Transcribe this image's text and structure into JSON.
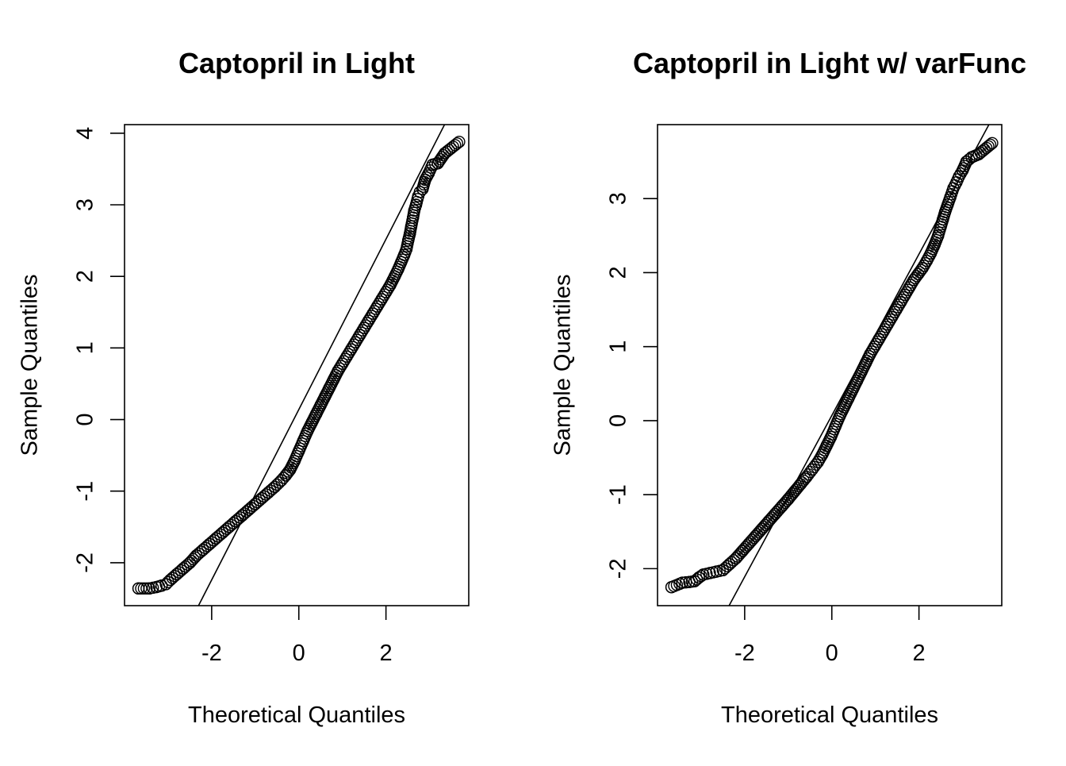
{
  "chart_data": [
    {
      "type": "scatter",
      "subtype": "normal-qq",
      "title": "Captopril in Light",
      "xlabel": "Theoretical Quantiles",
      "ylabel": "Sample Quantiles",
      "xlim": [
        -4.0,
        3.9
      ],
      "ylim": [
        -2.6,
        4.12
      ],
      "xticks": [
        -2,
        0,
        2
      ],
      "yticks": [
        -2,
        -1,
        0,
        1,
        2,
        3,
        4
      ],
      "reference_line": {
        "slope": 1.19,
        "intercept": 0.14
      },
      "points": [
        [
          3.68,
          3.88
        ],
        [
          3.35,
          3.72
        ],
        [
          3.19,
          3.58
        ],
        [
          3.07,
          3.56
        ],
        [
          2.98,
          3.44
        ],
        [
          2.9,
          3.35
        ],
        [
          2.84,
          3.22
        ],
        [
          2.78,
          3.18
        ],
        [
          2.74,
          3.12
        ],
        [
          2.69,
          3.0
        ],
        [
          2.65,
          2.92
        ],
        [
          2.62,
          2.82
        ],
        [
          2.58,
          2.7
        ],
        [
          2.55,
          2.6
        ],
        [
          2.51,
          2.5
        ],
        [
          2.47,
          2.38
        ],
        [
          2.42,
          2.3
        ],
        [
          2.35,
          2.2
        ],
        [
          2.28,
          2.1
        ],
        [
          2.2,
          2.0
        ],
        [
          2.1,
          1.88
        ],
        [
          2.0,
          1.78
        ],
        [
          1.9,
          1.68
        ],
        [
          1.8,
          1.58
        ],
        [
          1.7,
          1.48
        ],
        [
          1.6,
          1.38
        ],
        [
          1.5,
          1.28
        ],
        [
          1.4,
          1.18
        ],
        [
          1.3,
          1.08
        ],
        [
          1.2,
          0.98
        ],
        [
          1.1,
          0.88
        ],
        [
          1.0,
          0.78
        ],
        [
          0.9,
          0.68
        ],
        [
          0.8,
          0.56
        ],
        [
          0.7,
          0.44
        ],
        [
          0.6,
          0.32
        ],
        [
          0.5,
          0.2
        ],
        [
          0.4,
          0.08
        ],
        [
          0.3,
          -0.04
        ],
        [
          0.2,
          -0.16
        ],
        [
          0.1,
          -0.3
        ],
        [
          0.0,
          -0.44
        ],
        [
          -0.1,
          -0.58
        ],
        [
          -0.2,
          -0.7
        ],
        [
          -0.3,
          -0.78
        ],
        [
          -0.4,
          -0.85
        ],
        [
          -0.55,
          -0.94
        ],
        [
          -0.7,
          -1.02
        ],
        [
          -0.85,
          -1.1
        ],
        [
          -1.0,
          -1.18
        ],
        [
          -1.15,
          -1.26
        ],
        [
          -1.3,
          -1.34
        ],
        [
          -1.45,
          -1.42
        ],
        [
          -1.6,
          -1.5
        ],
        [
          -1.75,
          -1.58
        ],
        [
          -1.9,
          -1.66
        ],
        [
          -2.05,
          -1.74
        ],
        [
          -2.2,
          -1.82
        ],
        [
          -2.35,
          -1.9
        ],
        [
          -2.5,
          -2.0
        ],
        [
          -2.65,
          -2.08
        ],
        [
          -2.8,
          -2.16
        ],
        [
          -2.95,
          -2.24
        ],
        [
          -3.05,
          -2.3
        ],
        [
          -3.15,
          -2.32
        ],
        [
          -3.27,
          -2.34
        ],
        [
          -3.43,
          -2.36
        ],
        [
          -3.68,
          -2.36
        ]
      ]
    },
    {
      "type": "scatter",
      "subtype": "normal-qq",
      "title": "Captopril in Light w/ varFunc",
      "xlabel": "Theoretical Quantiles",
      "ylabel": "Sample Quantiles",
      "xlim": [
        -4.0,
        3.9
      ],
      "ylim": [
        -2.5,
        4.0
      ],
      "xticks": [
        -2,
        0,
        2
      ],
      "yticks": [
        -2,
        -1,
        0,
        1,
        2,
        3
      ],
      "reference_line": {
        "slope": 1.09,
        "intercept": 0.07
      },
      "points": [
        [
          3.68,
          3.75
        ],
        [
          3.37,
          3.6
        ],
        [
          3.21,
          3.56
        ],
        [
          3.09,
          3.5
        ],
        [
          3.0,
          3.38
        ],
        [
          2.92,
          3.3
        ],
        [
          2.86,
          3.22
        ],
        [
          2.79,
          3.14
        ],
        [
          2.72,
          3.02
        ],
        [
          2.66,
          2.92
        ],
        [
          2.6,
          2.82
        ],
        [
          2.55,
          2.72
        ],
        [
          2.5,
          2.62
        ],
        [
          2.44,
          2.5
        ],
        [
          2.36,
          2.38
        ],
        [
          2.27,
          2.26
        ],
        [
          2.18,
          2.16
        ],
        [
          2.08,
          2.06
        ],
        [
          1.98,
          1.98
        ],
        [
          1.88,
          1.9
        ],
        [
          1.78,
          1.8
        ],
        [
          1.68,
          1.7
        ],
        [
          1.58,
          1.6
        ],
        [
          1.48,
          1.5
        ],
        [
          1.38,
          1.4
        ],
        [
          1.28,
          1.3
        ],
        [
          1.18,
          1.2
        ],
        [
          1.08,
          1.1
        ],
        [
          0.98,
          1.0
        ],
        [
          0.88,
          0.9
        ],
        [
          0.78,
          0.78
        ],
        [
          0.68,
          0.66
        ],
        [
          0.58,
          0.54
        ],
        [
          0.48,
          0.42
        ],
        [
          0.38,
          0.3
        ],
        [
          0.28,
          0.18
        ],
        [
          0.18,
          0.06
        ],
        [
          0.08,
          -0.08
        ],
        [
          -0.02,
          -0.22
        ],
        [
          -0.12,
          -0.34
        ],
        [
          -0.22,
          -0.46
        ],
        [
          -0.32,
          -0.56
        ],
        [
          -0.45,
          -0.66
        ],
        [
          -0.58,
          -0.76
        ],
        [
          -0.72,
          -0.86
        ],
        [
          -0.86,
          -0.96
        ],
        [
          -1.0,
          -1.06
        ],
        [
          -1.15,
          -1.16
        ],
        [
          -1.3,
          -1.26
        ],
        [
          -1.45,
          -1.36
        ],
        [
          -1.6,
          -1.46
        ],
        [
          -1.75,
          -1.56
        ],
        [
          -1.9,
          -1.66
        ],
        [
          -2.05,
          -1.76
        ],
        [
          -2.2,
          -1.86
        ],
        [
          -2.35,
          -1.94
        ],
        [
          -2.5,
          -2.02
        ],
        [
          -2.65,
          -2.04
        ],
        [
          -2.8,
          -2.06
        ],
        [
          -2.95,
          -2.08
        ],
        [
          -3.05,
          -2.12
        ],
        [
          -3.15,
          -2.17
        ],
        [
          -3.27,
          -2.18
        ],
        [
          -3.43,
          -2.19
        ],
        [
          -3.68,
          -2.25
        ]
      ]
    }
  ]
}
